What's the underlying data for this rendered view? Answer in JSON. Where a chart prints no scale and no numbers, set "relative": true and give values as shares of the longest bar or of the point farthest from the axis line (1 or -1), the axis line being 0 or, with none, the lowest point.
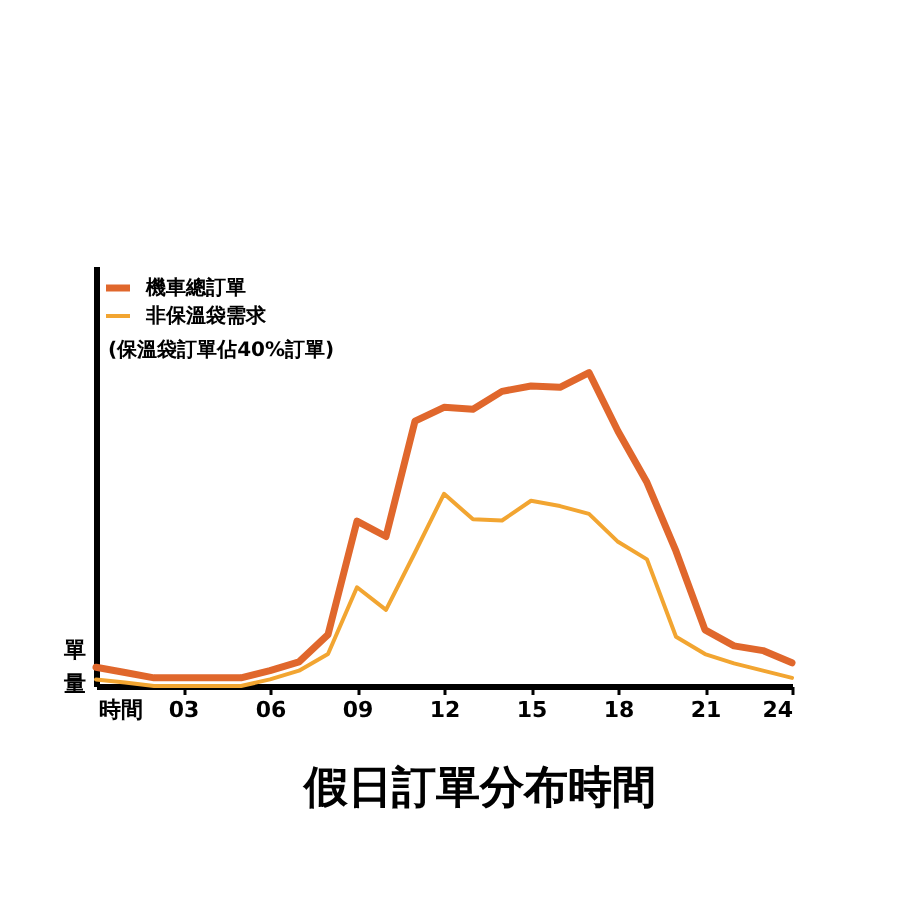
{
  "chart_data": {
    "type": "line",
    "title": "假日訂單分布時間",
    "xlabel": "時間",
    "ylabel": "單量",
    "relative": true,
    "tick_labels": "x",
    "legend": "top left",
    "annotations": [
      "(保溫袋訂單佔40%訂單)"
    ],
    "x": [
      0,
      1,
      2,
      3,
      4,
      5,
      6,
      7,
      8,
      9,
      10,
      11,
      12,
      13,
      14,
      15,
      16,
      17,
      18,
      19,
      20,
      21,
      22,
      23,
      24
    ],
    "xlim": [
      0,
      24
    ],
    "xticks": [
      {
        "value": 3,
        "label": "03"
      },
      {
        "value": 6,
        "label": "06"
      },
      {
        "value": 9,
        "label": "09"
      },
      12,
      15,
      18,
      21,
      24
    ],
    "series": [
      {
        "name": "機車總訂單",
        "color": "#e0672c",
        "values": [
          0.06,
          0.043,
          0.026,
          0.026,
          0.026,
          0.026,
          0.049,
          0.077,
          0.164,
          0.526,
          0.477,
          0.845,
          0.889,
          0.883,
          0.94,
          0.957,
          0.953,
          1,
          0.813,
          0.649,
          0.43,
          0.179,
          0.128,
          0.113,
          0.074
        ]
      },
      {
        "name": "非保溫袋需求",
        "color": "#f2a531",
        "values": [
          0.021,
          0.011,
          0,
          0,
          0,
          0,
          0.021,
          0.049,
          0.102,
          0.315,
          0.243,
          0.426,
          0.613,
          0.532,
          0.528,
          0.591,
          0.574,
          0.549,
          0.46,
          0.404,
          0.157,
          0.102,
          0.072,
          0.049,
          0.026
        ]
      }
    ]
  }
}
